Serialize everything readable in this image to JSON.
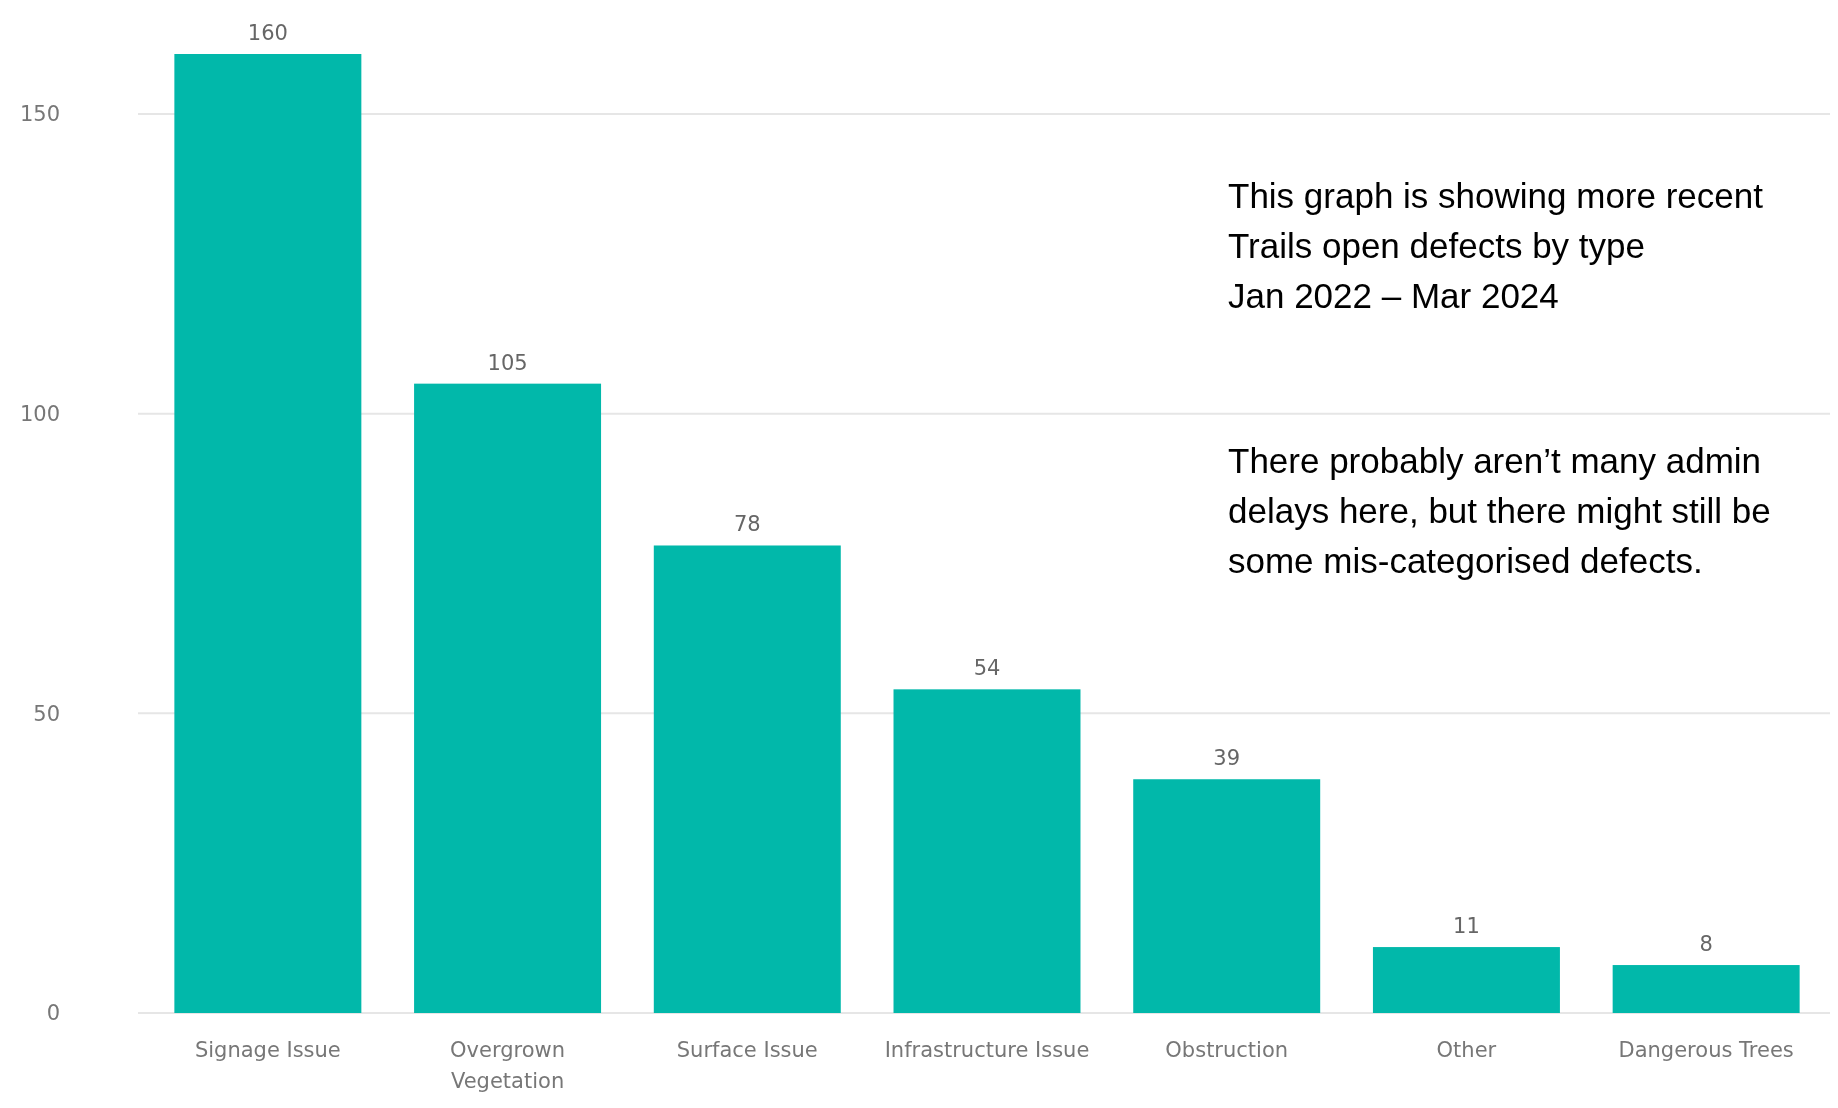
{
  "chart_data": {
    "type": "bar",
    "categories": [
      "Signage Issue",
      "Overgrown Vegetation",
      "Surface Issue",
      "Infrastructure Issue",
      "Obstruction",
      "Other",
      "Dangerous Trees"
    ],
    "values": [
      160,
      105,
      78,
      54,
      39,
      11,
      8
    ],
    "color": "#01b8aa",
    "ylim": [
      0,
      160
    ],
    "yticks": [
      0,
      50,
      100,
      150
    ],
    "grid": "y",
    "data_labels": true,
    "annotations": [
      "This graph is showing more recent\nTrails open defects by type\nJan 2022 – Mar 2024",
      "There probably aren’t many admin\ndelays here, but there might still be\nsome mis-categorised defects."
    ]
  }
}
